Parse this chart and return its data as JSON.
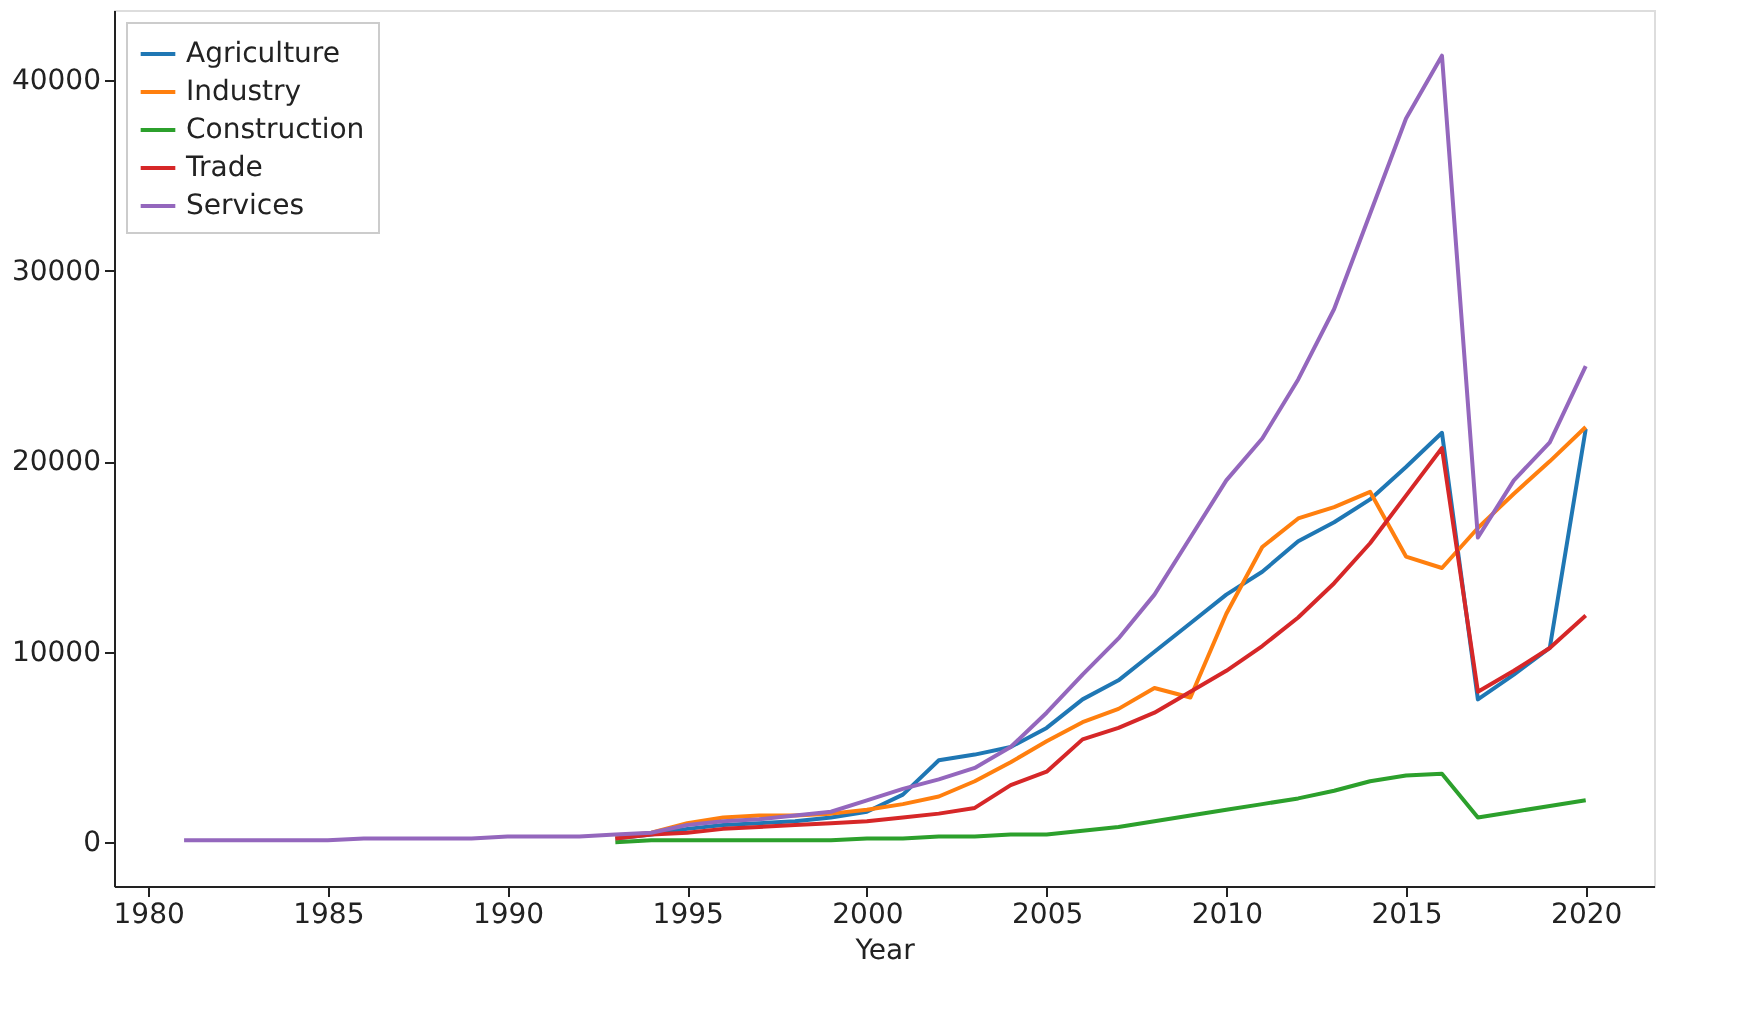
{
  "chart_data": {
    "type": "line",
    "xlabel": "Year",
    "x": [
      1981,
      1982,
      1983,
      1984,
      1985,
      1986,
      1987,
      1988,
      1989,
      1990,
      1991,
      1992,
      1993,
      1994,
      1995,
      1996,
      1997,
      1998,
      1999,
      2000,
      2001,
      2002,
      2003,
      2004,
      2005,
      2006,
      2007,
      2008,
      2009,
      2010,
      2011,
      2012,
      2013,
      2014,
      2015,
      2016,
      2017,
      2018,
      2019,
      2020
    ],
    "series": [
      {
        "name": "Agriculture",
        "color": "#1f77b4",
        "values": [
          null,
          null,
          null,
          null,
          null,
          null,
          null,
          null,
          null,
          null,
          null,
          null,
          200,
          400,
          700,
          900,
          1000,
          1100,
          1300,
          1600,
          2500,
          4300,
          4600,
          5000,
          6000,
          7500,
          8500,
          10000,
          11500,
          13000,
          14200,
          15800,
          16800,
          18000,
          19700,
          21500,
          7500,
          8800,
          10200,
          21700
        ]
      },
      {
        "name": "Industry",
        "color": "#ff7f0e",
        "values": [
          null,
          null,
          null,
          null,
          null,
          null,
          null,
          null,
          null,
          null,
          null,
          null,
          300,
          500,
          1000,
          1300,
          1400,
          1400,
          1500,
          1700,
          2000,
          2400,
          3200,
          4200,
          5300,
          6300,
          7000,
          8100,
          7600,
          12000,
          15500,
          17000,
          17600,
          18400,
          15000,
          14400,
          16500,
          18300,
          20000,
          21800
        ]
      },
      {
        "name": "Construction",
        "color": "#2ca02c",
        "values": [
          null,
          null,
          null,
          null,
          null,
          null,
          null,
          null,
          null,
          null,
          null,
          null,
          0,
          100,
          100,
          100,
          100,
          100,
          100,
          200,
          200,
          300,
          300,
          400,
          400,
          600,
          800,
          1100,
          1400,
          1700,
          2000,
          2300,
          2700,
          3200,
          3500,
          3600,
          1300,
          1600,
          1900,
          2200
        ]
      },
      {
        "name": "Trade",
        "color": "#d62728",
        "values": [
          null,
          null,
          null,
          null,
          null,
          null,
          null,
          null,
          null,
          null,
          null,
          null,
          200,
          400,
          500,
          700,
          800,
          900,
          1000,
          1100,
          1300,
          1500,
          1800,
          3000,
          3700,
          5400,
          6000,
          6800,
          7900,
          9000,
          10300,
          11800,
          13600,
          15700,
          18200,
          20700,
          7900,
          9000,
          10200,
          11900
        ]
      },
      {
        "name": "Services",
        "color": "#9467bd",
        "values": [
          100,
          100,
          100,
          100,
          100,
          200,
          200,
          200,
          200,
          300,
          300,
          300,
          400,
          500,
          900,
          1100,
          1200,
          1400,
          1600,
          2200,
          2800,
          3300,
          3900,
          5000,
          6800,
          8800,
          10700,
          13000,
          16000,
          19000,
          21200,
          24300,
          28000,
          33000,
          38000,
          41300,
          16000,
          19000,
          21000,
          25000
        ]
      }
    ],
    "xlim": [
      1979.05,
      2021.9
    ],
    "xticks": [
      1980,
      1985,
      1990,
      1995,
      2000,
      2005,
      2010,
      2015,
      2020
    ],
    "ylim": [
      -2300,
      43700
    ],
    "yticks": [
      0,
      10000,
      20000,
      30000,
      40000
    ],
    "grid": false,
    "legend": "top left",
    "marker": "none",
    "line_style": "solid"
  }
}
